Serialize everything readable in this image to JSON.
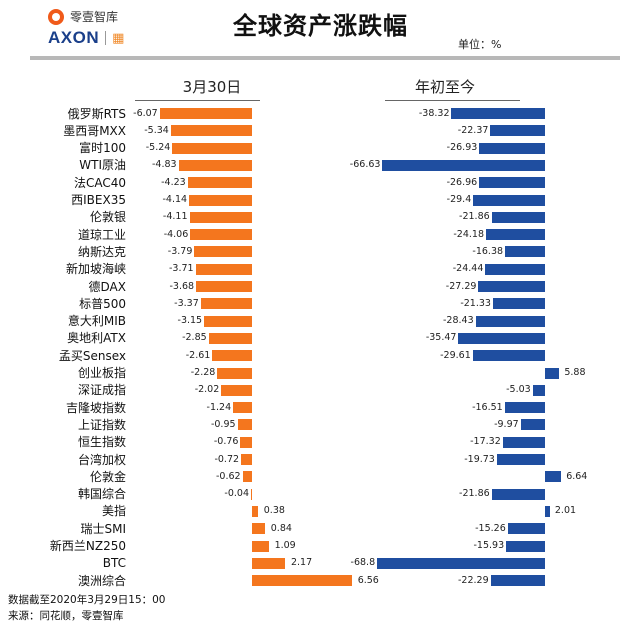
{
  "header": {
    "logo_cn": "零壹智库",
    "brand": "AXON",
    "title": "全球资产涨跌幅",
    "unit": "单位：%"
  },
  "colors": {
    "left_bar": "#f4761e",
    "right_bar": "#1f4ea0"
  },
  "chart_data": {
    "type": "bar",
    "orientation": "horizontal",
    "categories": [
      "俄罗斯RTS",
      "墨西哥MXX",
      "富时100",
      "WTI原油",
      "法CAC40",
      "西IBEX35",
      "伦敦银",
      "道琼工业",
      "纳斯达克",
      "新加坡海峡",
      "德DAX",
      "标普500",
      "意大利MIB",
      "奥地利ATX",
      "孟买Sensex",
      "创业板指",
      "深证成指",
      "吉隆坡指数",
      "上证指数",
      "恒生指数",
      "台湾加权",
      "伦敦金",
      "韩国综合",
      "美指",
      "瑞士SMI",
      "新西兰NZ250",
      "BTC",
      "澳洲综合"
    ],
    "series": [
      {
        "name": "3月30日",
        "values": [
          -6.07,
          -5.34,
          -5.24,
          -4.83,
          -4.23,
          -4.14,
          -4.11,
          -4.06,
          -3.79,
          -3.71,
          -3.68,
          -3.37,
          -3.15,
          -2.85,
          -2.61,
          -2.28,
          -2.02,
          -1.24,
          -0.95,
          -0.76,
          -0.72,
          -0.62,
          -0.04,
          0.38,
          0.84,
          1.09,
          2.17,
          6.56
        ]
      },
      {
        "name": "年初至今",
        "values": [
          -38.32,
          -22.37,
          -26.93,
          -66.63,
          -26.96,
          -29.4,
          -21.86,
          -24.18,
          -16.38,
          -24.44,
          -27.29,
          -21.33,
          -28.43,
          -35.47,
          -29.61,
          5.88,
          -5.03,
          -16.51,
          -9.97,
          -17.32,
          -19.73,
          6.64,
          -21.86,
          2.01,
          -15.26,
          -15.93,
          -68.8,
          -22.29
        ]
      }
    ],
    "title": "全球资产涨跌幅",
    "xlabel": "",
    "ylabel": "",
    "grid": false,
    "legend": "none"
  },
  "footer": {
    "line1": "数据截至2020年3月29日15：00",
    "line2": "来源：同花顺，零壹智库"
  }
}
